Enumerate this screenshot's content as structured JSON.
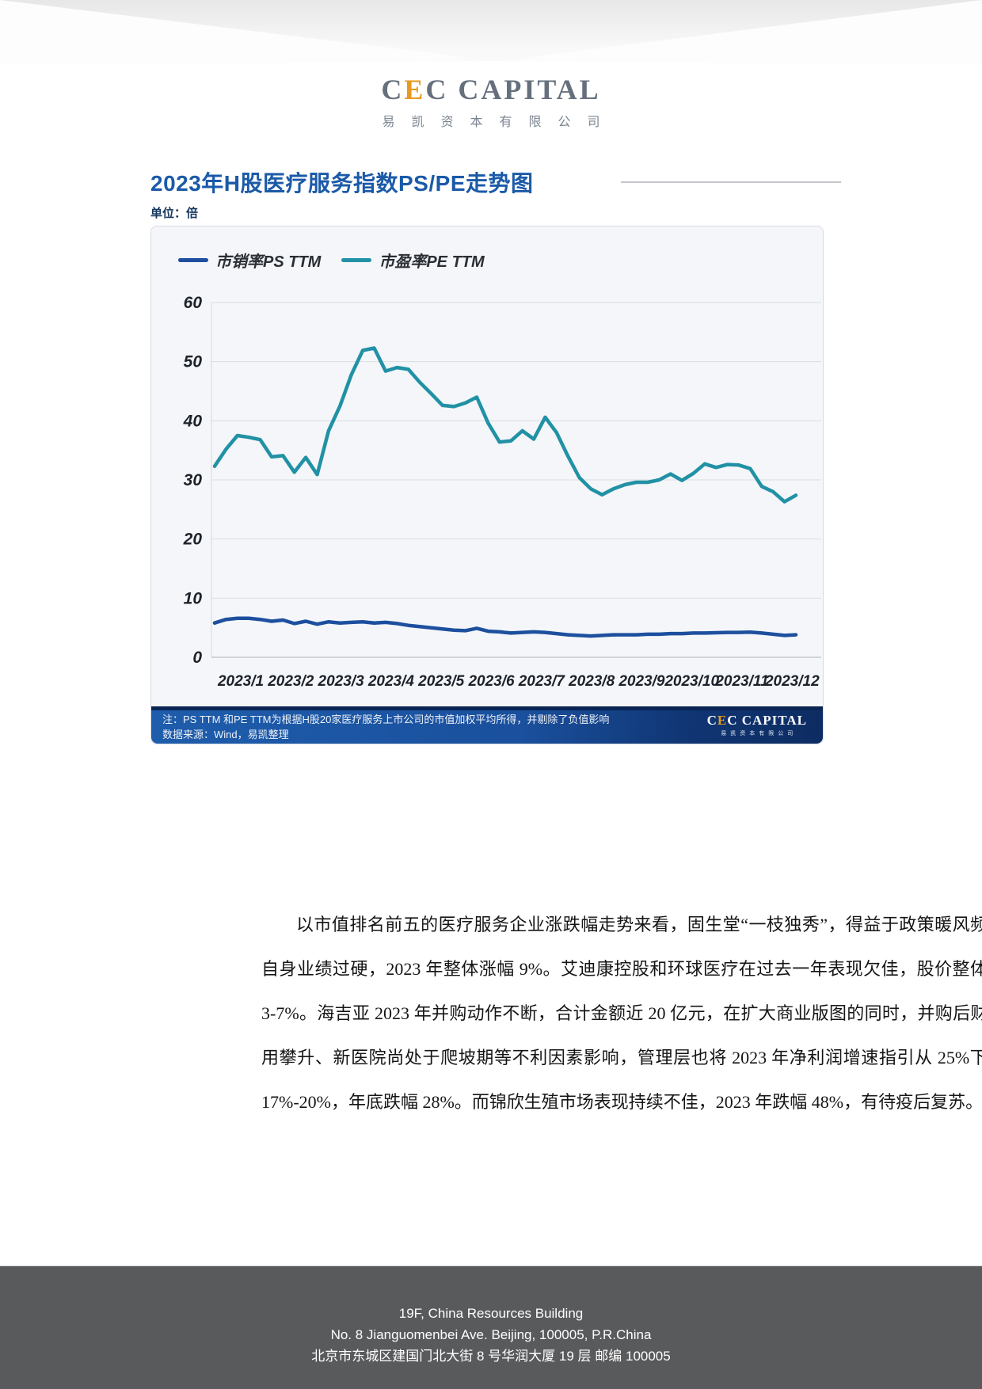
{
  "logo": {
    "c1": "C",
    "e": "E",
    "rest": "C CAPITAL",
    "chinese": "易凯资本有限公司",
    "accent_color": "#e8991e",
    "text_color": "#66707d"
  },
  "section": {
    "title": "2023年H股医疗服务指数PS/PE走势图",
    "unit": "单位：倍"
  },
  "chart_data": {
    "type": "line",
    "title": "2023年H股医疗服务指数PS/PE走势图",
    "unit_label": "单位：倍",
    "x_unit": "week of 2023",
    "x_tick_labels": [
      "2023/1",
      "2023/2",
      "2023/3",
      "2023/4",
      "2023/5",
      "2023/6",
      "2023/7",
      "2023/8",
      "2023/9",
      "2023/10",
      "2023/11",
      "2023/12"
    ],
    "ylim": [
      0,
      60
    ],
    "yticks": [
      0,
      10,
      20,
      30,
      40,
      50,
      60
    ],
    "grid": "horizontal",
    "legend_position": "top-left",
    "series": [
      {
        "name": "市销率PS TTM",
        "color": "#1d4f9e",
        "values": [
          5.8,
          6.4,
          6.6,
          6.6,
          6.4,
          6.1,
          6.3,
          5.7,
          6.1,
          5.6,
          6.0,
          5.8,
          5.9,
          6.0,
          5.8,
          5.9,
          5.7,
          5.4,
          5.2,
          5.0,
          4.8,
          4.6,
          4.5,
          4.9,
          4.4,
          4.3,
          4.1,
          4.2,
          4.3,
          4.2,
          4.0,
          3.8,
          3.7,
          3.6,
          3.7,
          3.8,
          3.8,
          3.8,
          3.9,
          3.9,
          4.0,
          4.0,
          4.1,
          4.1,
          4.15,
          4.2,
          4.2,
          4.25,
          4.1,
          3.9,
          3.7,
          3.8
        ]
      },
      {
        "name": "市盈率PE TTM",
        "color": "#2191a5",
        "values": [
          32.3,
          35.2,
          37.5,
          37.2,
          36.8,
          33.9,
          34.1,
          31.3,
          33.8,
          30.9,
          38.3,
          42.5,
          47.8,
          51.9,
          52.3,
          48.4,
          49.0,
          48.7,
          46.5,
          44.6,
          42.6,
          42.4,
          43.0,
          44.0,
          39.6,
          36.4,
          36.6,
          38.3,
          36.9,
          40.6,
          38.0,
          34.0,
          30.4,
          28.5,
          27.5,
          28.5,
          29.2,
          29.6,
          29.6,
          30.0,
          31.0,
          29.9,
          31.1,
          32.7,
          32.1,
          32.6,
          32.5,
          31.9,
          28.9,
          28.0,
          26.3,
          27.4
        ]
      }
    ]
  },
  "note": {
    "line1": "注：PS TTM 和PE TTM为根据H股20家医疗服务上市公司的市值加权平均所得，并剔除了负值影响",
    "line2": "数据来源：Wind，易凯整理",
    "logo_c1": "C",
    "logo_e": "E",
    "logo_rest": "C CAPITAL",
    "logo_sub": "易凯资本有限公司"
  },
  "body": {
    "paragraph": "以市值排名前五的医疗服务企业涨跌幅走势来看，固生堂“一枝独秀”，得益于政策暖风频吹和自身业绩过硬，2023 年整体涨幅 9%。艾迪康控股和环球医疗在过去一年表现欠佳，股价整体下跌 3-7%。海吉亚 2023 年并购动作不断，合计金额近 20 亿元，在扩大商业版图的同时，并购后财务费用攀升、新医院尚处于爬坡期等不利因素影响，管理层也将 2023 年净利润增速指引从 25%下调至 17%-20%，年底跌幅 28%。而锦欣生殖市场表现持续不佳，2023 年跌幅 48%，有待疫后复苏。"
  },
  "footer": {
    "line1": "19F, China Resources Building",
    "line2": "No. 8 Jianguomenbei Ave. Beijing, 100005, P.R.China",
    "line3": "北京市东城区建国门北大街 8 号华润大厦 19 层  邮编  100005"
  }
}
